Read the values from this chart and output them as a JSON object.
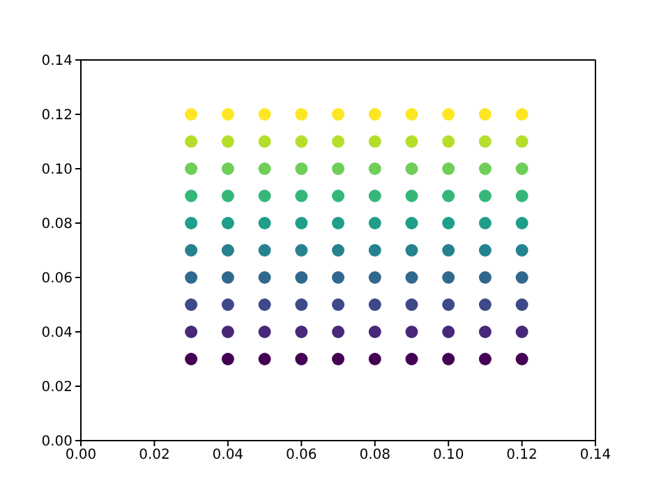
{
  "chart_data": {
    "type": "scatter",
    "marker": "circle",
    "xlim": [
      0,
      0.14
    ],
    "ylim": [
      0,
      0.14
    ],
    "xticks": [
      {
        "value": 0,
        "label": "0.00"
      },
      {
        "value": 0.02,
        "label": "0.02"
      },
      {
        "value": 0.04,
        "label": "0.04"
      },
      {
        "value": 0.06,
        "label": "0.06"
      },
      {
        "value": 0.08,
        "label": "0.08"
      },
      {
        "value": 0.1,
        "label": "0.10"
      },
      {
        "value": 0.12,
        "label": "0.12"
      },
      {
        "value": 0.14,
        "label": "0.14"
      }
    ],
    "yticks": [
      {
        "value": 0,
        "label": "0.00"
      },
      {
        "value": 0.02,
        "label": "0.02"
      },
      {
        "value": 0.04,
        "label": "0.04"
      },
      {
        "value": 0.06,
        "label": "0.06"
      },
      {
        "value": 0.08,
        "label": "0.08"
      },
      {
        "value": 0.1,
        "label": "0.10"
      },
      {
        "value": 0.12,
        "label": "0.12"
      },
      {
        "value": 0.14,
        "label": "0.14"
      }
    ],
    "x": [
      0.03,
      0.04,
      0.05,
      0.06,
      0.07,
      0.08,
      0.09,
      0.1,
      0.11,
      0.12
    ],
    "series": [
      {
        "color": "#440154",
        "values": [
          0.03,
          0.03,
          0.03,
          0.03,
          0.03,
          0.03,
          0.03,
          0.03,
          0.03,
          0.03
        ]
      },
      {
        "color": "#482878",
        "values": [
          0.04,
          0.04,
          0.04,
          0.04,
          0.04,
          0.04,
          0.04,
          0.04,
          0.04,
          0.04
        ]
      },
      {
        "color": "#3e4989",
        "values": [
          0.05,
          0.05,
          0.05,
          0.05,
          0.05,
          0.05,
          0.05,
          0.05,
          0.05,
          0.05
        ]
      },
      {
        "color": "#31688e",
        "values": [
          0.06,
          0.06,
          0.06,
          0.06,
          0.06,
          0.06,
          0.06,
          0.06,
          0.06,
          0.06
        ]
      },
      {
        "color": "#26828e",
        "values": [
          0.07,
          0.07,
          0.07,
          0.07,
          0.07,
          0.07,
          0.07,
          0.07,
          0.07,
          0.07
        ]
      },
      {
        "color": "#1f9e89",
        "values": [
          0.08,
          0.08,
          0.08,
          0.08,
          0.08,
          0.08,
          0.08,
          0.08,
          0.08,
          0.08
        ]
      },
      {
        "color": "#35b779",
        "values": [
          0.09,
          0.09,
          0.09,
          0.09,
          0.09,
          0.09,
          0.09,
          0.09,
          0.09,
          0.09
        ]
      },
      {
        "color": "#6ece58",
        "values": [
          0.1,
          0.1,
          0.1,
          0.1,
          0.1,
          0.1,
          0.1,
          0.1,
          0.1,
          0.1
        ]
      },
      {
        "color": "#b5de2b",
        "values": [
          0.11,
          0.11,
          0.11,
          0.11,
          0.11,
          0.11,
          0.11,
          0.11,
          0.11,
          0.11
        ]
      },
      {
        "color": "#fde725",
        "values": [
          0.12,
          0.12,
          0.12,
          0.12,
          0.12,
          0.12,
          0.12,
          0.12,
          0.12,
          0.12
        ]
      }
    ]
  }
}
